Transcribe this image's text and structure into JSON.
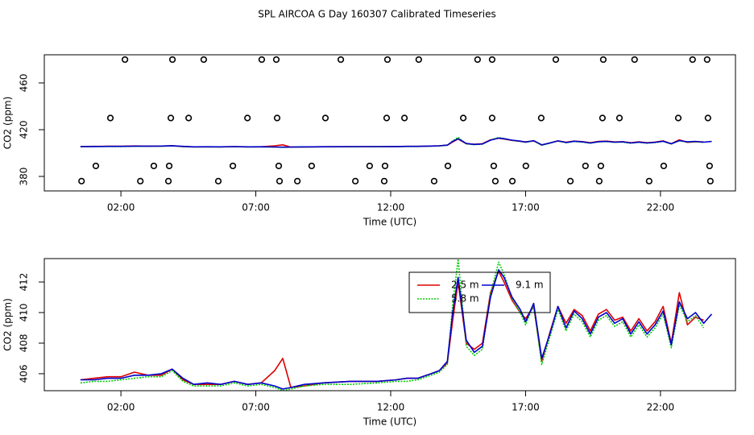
{
  "title": "SPL AIRCOA G  Day 160307  Calibrated Timeseries",
  "chart_data": [
    {
      "type": "line",
      "xlabel": "Time (UTC)",
      "ylabel": "CO2 (ppm)",
      "xlim": [
        -0.84,
        24.78
      ],
      "ylim": [
        367.6,
        484.1
      ],
      "xticks": [
        {
          "value": 2,
          "label": "02:00"
        },
        {
          "value": 7,
          "label": "07:00"
        },
        {
          "value": 12,
          "label": "12:00"
        },
        {
          "value": 17,
          "label": "17:00"
        },
        {
          "value": 22,
          "label": "22:00"
        }
      ],
      "yticks": [
        380,
        420,
        460
      ],
      "x": [
        0.5,
        1,
        1.5,
        2,
        2.5,
        3,
        3.5,
        3.9,
        4.3,
        4.7,
        5.2,
        5.7,
        6.2,
        6.7,
        7.2,
        7.7,
        8.0,
        8.3,
        8.8,
        9.5,
        10.5,
        11.5,
        12.2,
        12.6,
        13.0,
        13.5,
        13.8,
        14.1,
        14.3,
        14.5,
        14.8,
        15.1,
        15.4,
        15.7,
        16.0,
        16.2,
        16.5,
        16.8,
        17.0,
        17.3,
        17.6,
        17.9,
        18.2,
        18.5,
        18.8,
        19.1,
        19.4,
        19.7,
        20.0,
        20.3,
        20.6,
        20.9,
        21.2,
        21.5,
        21.8,
        22.1,
        22.4,
        22.7,
        23.0,
        23.3,
        23.6,
        23.9
      ],
      "series": [
        {
          "color": "#dd0000",
          "values": [
            405.6,
            405.7,
            405.8,
            405.8,
            406.1,
            405.9,
            405.9,
            406.3,
            405.6,
            405.3,
            405.3,
            405.3,
            405.5,
            405.3,
            405.4,
            406.2,
            407.0,
            405.1,
            405.2,
            405.4,
            405.5,
            405.5,
            405.6,
            405.7,
            405.7,
            406.0,
            406.2,
            406.7,
            409.5,
            412.0,
            408.0,
            407.6,
            408.0,
            411.3,
            412.7,
            412.0,
            410.8,
            410.0,
            409.6,
            410.4,
            406.8,
            408.7,
            410.4,
            409.3,
            410.2,
            409.8,
            408.8,
            409.9,
            410.2,
            409.5,
            409.7,
            408.8,
            409.6,
            408.8,
            409.4,
            410.4,
            408.0,
            411.3,
            409.2,
            409.7,
            409.5,
            null
          ]
        },
        {
          "color": "#00cc00",
          "style": "dotted",
          "values": [
            405.4,
            405.5,
            405.5,
            405.6,
            405.7,
            405.8,
            405.8,
            406.2,
            405.5,
            405.2,
            405.2,
            405.2,
            405.4,
            405.2,
            405.3,
            405.1,
            404.9,
            405.0,
            405.2,
            405.3,
            405.3,
            405.4,
            405.5,
            405.5,
            405.6,
            405.9,
            406.1,
            406.6,
            410.5,
            413.5,
            407.8,
            407.2,
            407.6,
            411.2,
            413.3,
            412.5,
            410.9,
            410.0,
            409.2,
            410.5,
            406.6,
            408.4,
            410.2,
            408.8,
            409.9,
            409.4,
            408.4,
            409.5,
            409.8,
            409.1,
            409.4,
            408.4,
            409.2,
            408.4,
            409.0,
            409.9,
            407.7,
            410.5,
            409.4,
            409.8,
            409.0,
            null
          ]
        },
        {
          "color": "#0000cc",
          "values": [
            405.6,
            405.6,
            405.7,
            405.7,
            405.9,
            405.9,
            406.0,
            406.3,
            405.7,
            405.3,
            405.4,
            405.3,
            405.5,
            405.3,
            405.4,
            405.2,
            405.0,
            405.1,
            405.3,
            405.4,
            405.5,
            405.5,
            405.6,
            405.7,
            405.7,
            406.0,
            406.2,
            406.8,
            410.0,
            412.3,
            408.2,
            407.4,
            407.8,
            411.0,
            412.8,
            412.3,
            411.0,
            410.2,
            409.4,
            410.6,
            407.0,
            408.6,
            410.4,
            409.0,
            410.1,
            409.6,
            408.6,
            409.7,
            410.0,
            409.3,
            409.6,
            408.6,
            409.4,
            408.6,
            409.2,
            410.1,
            407.9,
            410.7,
            409.6,
            410.0,
            409.3,
            409.9
          ]
        },
        {
          "type": "scatter",
          "color": "#000000",
          "x": [
            2.15,
            3.91,
            5.07,
            7.22,
            7.76,
            10.15,
            11.88,
            13.04,
            15.22,
            15.76,
            18.12,
            19.88,
            21.04,
            23.19,
            23.73,
            1.61,
            3.85,
            4.51,
            6.69,
            7.79,
            9.58,
            11.85,
            12.51,
            14.69,
            15.76,
            17.58,
            19.85,
            20.48,
            22.66,
            23.76,
            1.07,
            3.22,
            3.79,
            6.15,
            7.85,
            9.07,
            11.22,
            11.79,
            14.12,
            15.82,
            17.01,
            19.22,
            19.79,
            22.12,
            23.82,
            0.54,
            2.72,
            3.76,
            5.61,
            7.88,
            8.54,
            10.69,
            11.76,
            13.61,
            15.88,
            16.51,
            18.66,
            19.73,
            21.58,
            23.85
          ],
          "values": [
            480,
            480,
            480,
            480,
            480,
            480,
            480,
            480,
            480,
            480,
            480,
            480,
            480,
            480,
            480,
            430,
            430,
            430,
            430,
            430,
            430,
            430,
            430,
            430,
            430,
            430,
            430,
            430,
            430,
            430,
            389,
            389,
            389,
            389,
            389,
            389,
            389,
            389,
            389,
            389,
            389,
            389,
            389,
            389,
            389,
            376,
            376,
            376,
            376,
            376,
            376,
            376,
            376,
            376,
            376,
            376,
            376,
            376,
            376,
            376
          ]
        }
      ]
    },
    {
      "type": "line",
      "xlabel": "Time (UTC)",
      "ylabel": "CO2 (ppm)",
      "legend": "top",
      "xlim": [
        -0.84,
        24.78
      ],
      "ylim": [
        404.89,
        413.53
      ],
      "xticks": [
        {
          "value": 2,
          "label": "02:00"
        },
        {
          "value": 7,
          "label": "07:00"
        },
        {
          "value": 12,
          "label": "12:00"
        },
        {
          "value": 17,
          "label": "17:00"
        },
        {
          "value": 22,
          "label": "22:00"
        }
      ],
      "yticks": [
        406,
        408,
        410,
        412
      ],
      "x": [
        0.5,
        1,
        1.5,
        2,
        2.5,
        3,
        3.5,
        3.9,
        4.3,
        4.7,
        5.2,
        5.7,
        6.2,
        6.7,
        7.2,
        7.7,
        8.0,
        8.3,
        8.8,
        9.5,
        10.5,
        11.5,
        12.2,
        12.6,
        13.0,
        13.5,
        13.8,
        14.1,
        14.3,
        14.5,
        14.8,
        15.1,
        15.4,
        15.7,
        16.0,
        16.2,
        16.5,
        16.8,
        17.0,
        17.3,
        17.6,
        17.9,
        18.2,
        18.5,
        18.8,
        19.1,
        19.4,
        19.7,
        20.0,
        20.3,
        20.6,
        20.9,
        21.2,
        21.5,
        21.8,
        22.1,
        22.4,
        22.7,
        23.0,
        23.3,
        23.6,
        23.9
      ],
      "series": [
        {
          "name": "2.5 m",
          "color": "#dd0000",
          "values": [
            405.6,
            405.7,
            405.8,
            405.8,
            406.1,
            405.9,
            405.9,
            406.3,
            405.6,
            405.3,
            405.3,
            405.3,
            405.5,
            405.3,
            405.4,
            406.2,
            407.0,
            405.1,
            405.2,
            405.4,
            405.5,
            405.5,
            405.6,
            405.7,
            405.7,
            406.0,
            406.2,
            406.7,
            409.5,
            412.0,
            408.0,
            407.6,
            408.0,
            411.3,
            412.7,
            412.0,
            410.8,
            410.0,
            409.6,
            410.4,
            406.8,
            408.7,
            410.4,
            409.3,
            410.2,
            409.8,
            408.8,
            409.9,
            410.2,
            409.5,
            409.7,
            408.8,
            409.6,
            408.8,
            409.4,
            410.4,
            408.0,
            411.3,
            409.2,
            409.7,
            409.5,
            null
          ]
        },
        {
          "name": "5.8 m",
          "color": "#00cc00",
          "style": "dotted",
          "values": [
            405.4,
            405.5,
            405.5,
            405.6,
            405.7,
            405.8,
            405.8,
            406.2,
            405.5,
            405.2,
            405.2,
            405.2,
            405.4,
            405.2,
            405.3,
            405.1,
            404.9,
            405.0,
            405.2,
            405.3,
            405.3,
            405.4,
            405.5,
            405.5,
            405.6,
            405.9,
            406.1,
            406.6,
            410.5,
            413.5,
            407.8,
            407.2,
            407.6,
            411.2,
            413.3,
            412.5,
            410.9,
            410.0,
            409.2,
            410.5,
            406.6,
            408.4,
            410.2,
            408.8,
            409.9,
            409.4,
            408.4,
            409.5,
            409.8,
            409.1,
            409.4,
            408.4,
            409.2,
            408.4,
            409.0,
            409.9,
            407.7,
            410.5,
            409.4,
            409.8,
            409.0,
            null
          ]
        },
        {
          "name": "9.1 m",
          "color": "#0000cc",
          "values": [
            405.6,
            405.6,
            405.7,
            405.7,
            405.9,
            405.9,
            406.0,
            406.3,
            405.7,
            405.3,
            405.4,
            405.3,
            405.5,
            405.3,
            405.4,
            405.2,
            405.0,
            405.1,
            405.3,
            405.4,
            405.5,
            405.5,
            405.6,
            405.7,
            405.7,
            406.0,
            406.2,
            406.8,
            410.0,
            412.3,
            408.2,
            407.4,
            407.8,
            411.0,
            412.8,
            412.3,
            411.0,
            410.2,
            409.4,
            410.6,
            407.0,
            408.6,
            410.4,
            409.0,
            410.1,
            409.6,
            408.6,
            409.7,
            410.0,
            409.3,
            409.6,
            408.6,
            409.4,
            408.6,
            409.2,
            410.1,
            407.9,
            410.7,
            409.6,
            410.0,
            409.3,
            409.9
          ]
        }
      ]
    }
  ]
}
